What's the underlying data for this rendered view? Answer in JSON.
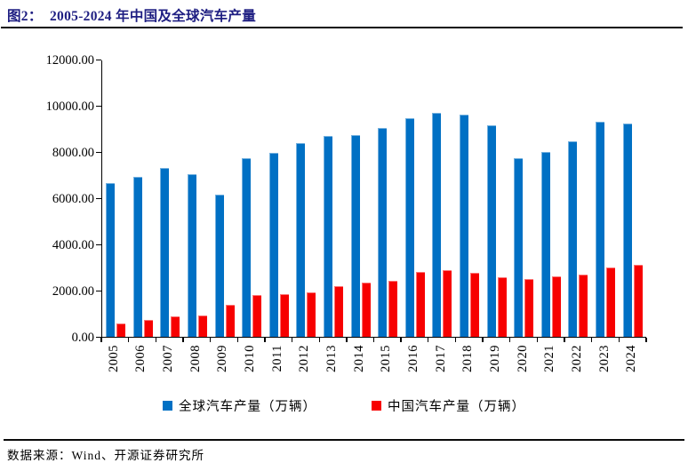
{
  "header": {
    "title": "图2：  2005-2024 年中国及全球汽车产量"
  },
  "footer": {
    "source": "数据来源：Wind、开源证券研究所"
  },
  "colors": {
    "global_bar": "#0070C4",
    "china_bar": "#F70000",
    "title_text": "#1E1E82",
    "axis": "#000000",
    "rule": "#0a0a0a"
  },
  "chart_data": {
    "type": "bar",
    "title": "2005-2024 年中国及全球汽车产量",
    "categories": [
      "2005",
      "2006",
      "2007",
      "2008",
      "2009",
      "2010",
      "2011",
      "2012",
      "2013",
      "2014",
      "2015",
      "2016",
      "2017",
      "2018",
      "2019",
      "2020",
      "2021",
      "2022",
      "2023",
      "2024"
    ],
    "series": [
      {
        "name": "全球汽车产量（万辆）",
        "color": "#0070C4",
        "values": [
          6665,
          6930,
          7327,
          7052,
          6176,
          7758,
          7990,
          8414,
          8731,
          8747,
          9078,
          9498,
          9730,
          9663,
          9179,
          7762,
          8015,
          8502,
          9355,
          9250
        ]
      },
      {
        "name": "中国汽车产量（万辆）",
        "color": "#F70000",
        "values": [
          570.7,
          727.9,
          888.2,
          934.5,
          1379.1,
          1826.5,
          1841.9,
          1927.2,
          2211.7,
          2372.3,
          2450.3,
          2811.9,
          2901.5,
          2780.9,
          2572.1,
          2522.5,
          2608.2,
          2702.1,
          3016.1,
          3128.2
        ]
      }
    ],
    "xlabel": "",
    "ylabel": "",
    "ylim": [
      0,
      12000
    ],
    "y_tick_step": 2000,
    "y_tick_labels": [
      "0.00",
      "2000.00",
      "4000.00",
      "6000.00",
      "8000.00",
      "10000.00",
      "12000.00"
    ],
    "grid": false,
    "legend_position": "bottom",
    "x_tick_rotation": 90
  }
}
